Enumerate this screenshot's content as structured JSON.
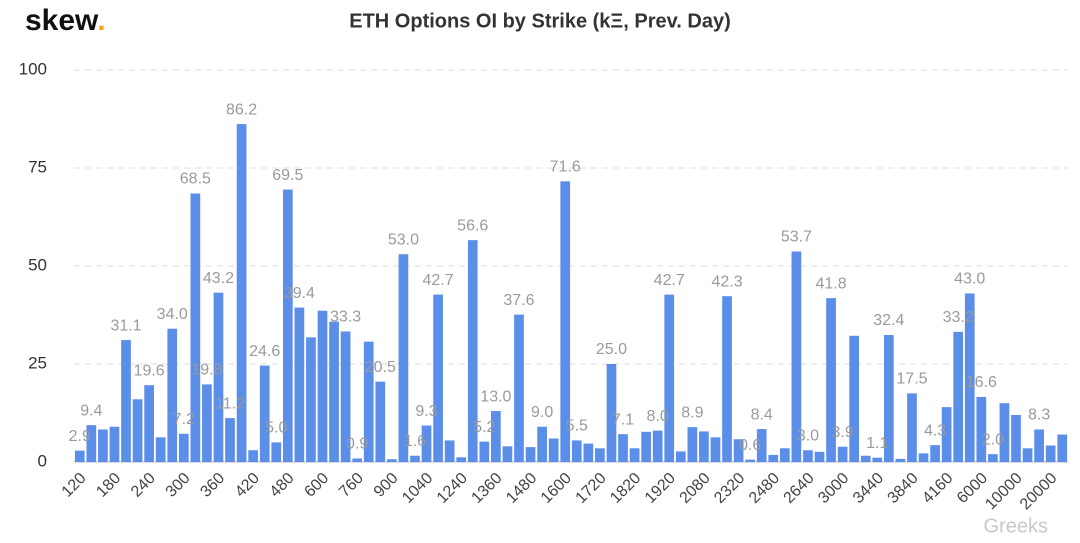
{
  "chart_data": {
    "type": "bar",
    "title": "ETH Options OI by Strike (kΞ, Prev. Day)",
    "brand": "skew",
    "brand_dot": ".",
    "watermark": "Greeks",
    "categories": [
      "120",
      null,
      null,
      "180",
      null,
      null,
      "240",
      null,
      null,
      "300",
      null,
      null,
      "360",
      null,
      null,
      "420",
      null,
      null,
      "480",
      null,
      null,
      "600",
      null,
      null,
      "760",
      null,
      null,
      "900",
      null,
      null,
      "1040",
      null,
      null,
      "1240",
      null,
      null,
      "1360",
      null,
      null,
      "1480",
      null,
      null,
      "1600",
      null,
      null,
      "1720",
      null,
      null,
      "1820",
      null,
      null,
      "1920",
      null,
      null,
      "2080",
      null,
      null,
      "2320",
      null,
      null,
      "2480",
      null,
      null,
      "2640",
      null,
      null,
      "3000",
      null,
      null,
      "3440",
      null,
      null,
      "3840",
      null,
      null,
      "4160",
      null,
      null,
      "6000",
      null,
      null,
      "10000",
      null,
      null,
      "20000",
      null
    ],
    "values": [
      2.9,
      9.4,
      8.3,
      9,
      31.1,
      16,
      19.6,
      6.3,
      34.0,
      7.2,
      68.5,
      19.8,
      43.2,
      11.2,
      86.2,
      3,
      24.6,
      5.0,
      69.5,
      39.4,
      31.8,
      38.6,
      35.8,
      33.3,
      0.9,
      30.7,
      20.5,
      0.7,
      53.0,
      1.6,
      9.3,
      42.7,
      5.5,
      1.2,
      56.6,
      5.2,
      13.0,
      4,
      37.6,
      3.8,
      9.0,
      6,
      71.6,
      5.5,
      4.7,
      3.5,
      25.0,
      7.1,
      3.5,
      7.7,
      8.0,
      42.7,
      2.7,
      8.9,
      7.8,
      6.3,
      42.3,
      5.8,
      0.6,
      8.4,
      1.8,
      3.5,
      53.7,
      3.0,
      2.6,
      41.8,
      3.9,
      32.2,
      1.6,
      1.1,
      32.4,
      0.8,
      17.5,
      2.2,
      4.3,
      14,
      33.2,
      43.0,
      16.6,
      2.0,
      15,
      12,
      3.5,
      8.3,
      4.2,
      7
    ],
    "value_labels": [
      "2.9",
      "9.4",
      null,
      null,
      "31.1",
      null,
      "19.6",
      null,
      "34.0",
      "7.2",
      "68.5",
      "19.8",
      "43.2",
      "11.2",
      "86.2",
      null,
      "24.6",
      "5.0",
      "69.5",
      "39.4",
      null,
      null,
      null,
      "33.3",
      "0.9",
      null,
      "20.5",
      null,
      "53.0",
      "1.6",
      "9.3",
      "42.7",
      null,
      null,
      "56.6",
      "5.2",
      "13.0",
      null,
      "37.6",
      null,
      "9.0",
      null,
      "71.6",
      "5.5",
      null,
      null,
      "25.0",
      "7.1",
      null,
      null,
      "8.0",
      "42.7",
      null,
      "8.9",
      null,
      null,
      "42.3",
      null,
      "0.6",
      "8.4",
      null,
      null,
      "53.7",
      "3.0",
      null,
      "41.8",
      "3.9",
      null,
      null,
      "1.1",
      "32.4",
      null,
      "17.5",
      null,
      "4.3",
      null,
      "33.2",
      "43.0",
      "16.6",
      "2.0",
      null,
      null,
      null,
      "8.3",
      null,
      null
    ],
    "color": "#5b8ee9",
    "ylim": [
      0,
      100
    ],
    "yticks": [
      0,
      25,
      50,
      75,
      100
    ],
    "grid": true
  }
}
